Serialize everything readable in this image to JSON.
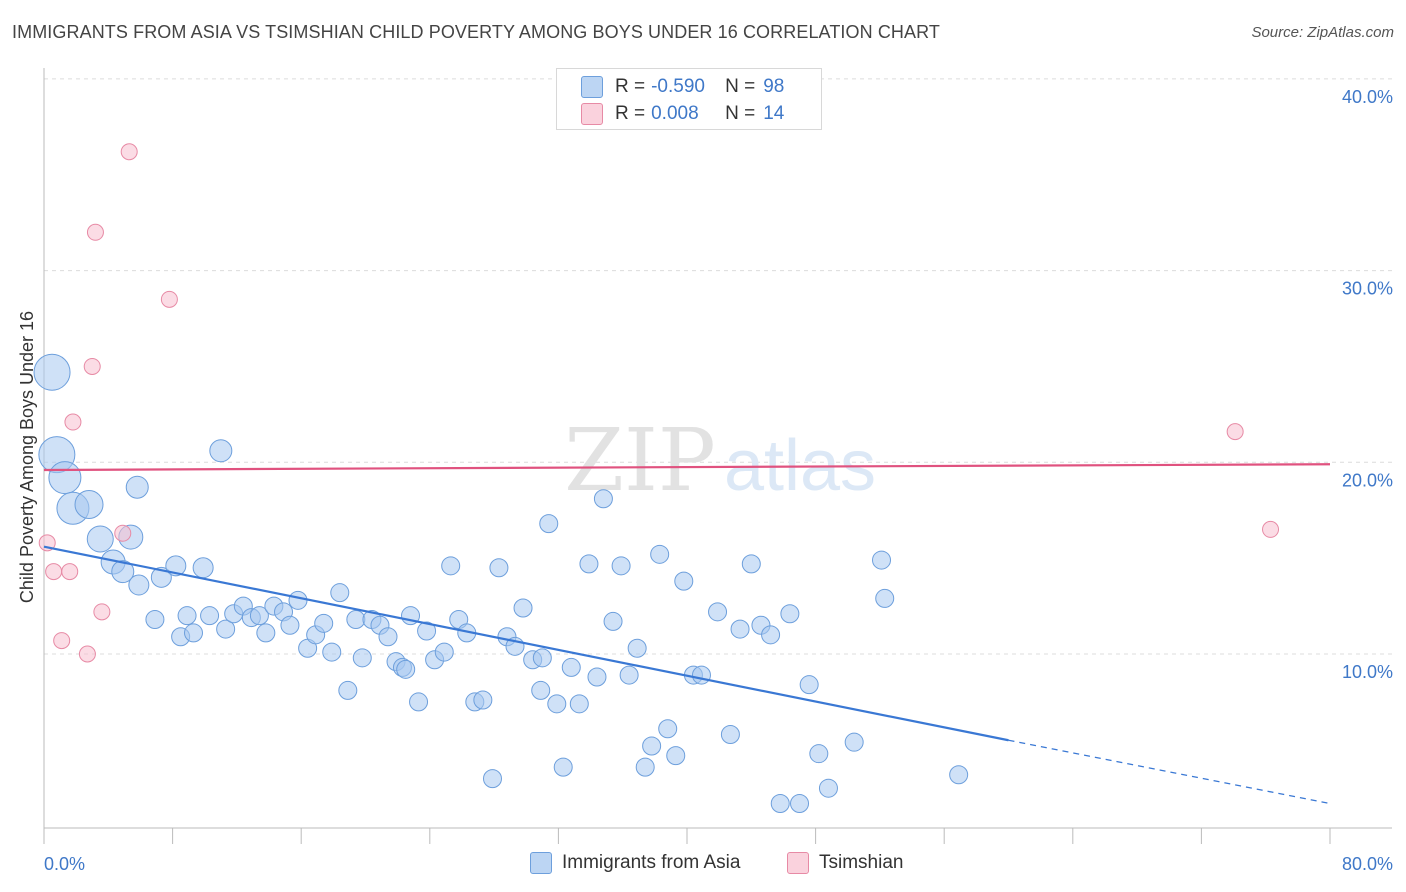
{
  "header": {
    "title": "IMMIGRANTS FROM ASIA VS TSIMSHIAN CHILD POVERTY AMONG BOYS UNDER 16 CORRELATION CHART",
    "source": "Source: ZipAtlas.com"
  },
  "watermark": {
    "zip": "ZIP",
    "atlas": "atlas"
  },
  "legend": {
    "rows": [
      {
        "r_label": "R =",
        "r_value": "-0.590",
        "n_label": "N =",
        "n_value": "98"
      },
      {
        "r_label": "R =",
        "r_value": "0.008",
        "n_label": "N =",
        "n_value": "14"
      }
    ]
  },
  "bottom_legend": {
    "series1": "Immigrants from Asia",
    "series2": "Tsimshian"
  },
  "colors": {
    "blue_fill": "#a8c8f0",
    "blue_stroke": "#6d9fdc",
    "blue_line": "#3a78d4",
    "pink_fill": "#f7c0cf",
    "pink_stroke": "#e78aa5",
    "pink_line": "#e0527f",
    "tick_text": "#3f78c8"
  },
  "chart_data": {
    "type": "scatter",
    "title": "IMMIGRANTS FROM ASIA VS TSIMSHIAN CHILD POVERTY AMONG BOYS UNDER 16 CORRELATION CHART",
    "xlabel": "",
    "ylabel": "Child Poverty Among Boys Under 16",
    "xlim": [
      0,
      80
    ],
    "ylim": [
      0,
      41
    ],
    "x_tick_labels": [
      "0.0%",
      "80.0%"
    ],
    "y_ticks": [
      10,
      20,
      30,
      40
    ],
    "y_tick_labels": [
      "10.0%",
      "20.0%",
      "30.0%",
      "40.0%"
    ],
    "grid": true,
    "legend_position": "top-center",
    "series": [
      {
        "name": "Immigrants from Asia",
        "r": -0.59,
        "n": 98,
        "trend": {
          "x0": 0,
          "y0": 15.6,
          "x1": 60,
          "y1": 5.5,
          "dash_to_x": 80,
          "dash_to_y": 2.2
        },
        "points": [
          {
            "x": 0.5,
            "y": 24.7,
            "s": 18
          },
          {
            "x": 0.8,
            "y": 20.4,
            "s": 18
          },
          {
            "x": 1.3,
            "y": 19.2,
            "s": 16
          },
          {
            "x": 1.8,
            "y": 17.6,
            "s": 16
          },
          {
            "x": 2.8,
            "y": 17.8,
            "s": 14
          },
          {
            "x": 3.5,
            "y": 16.0,
            "s": 13
          },
          {
            "x": 5.4,
            "y": 16.1,
            "s": 12
          },
          {
            "x": 4.3,
            "y": 14.8,
            "s": 12
          },
          {
            "x": 4.9,
            "y": 14.3,
            "s": 11
          },
          {
            "x": 5.9,
            "y": 13.6,
            "s": 10
          },
          {
            "x": 7.3,
            "y": 14.0,
            "s": 10
          },
          {
            "x": 8.2,
            "y": 14.6,
            "s": 10
          },
          {
            "x": 9.9,
            "y": 14.5,
            "s": 10
          },
          {
            "x": 5.8,
            "y": 18.7,
            "s": 11
          },
          {
            "x": 11.0,
            "y": 20.6,
            "s": 11
          },
          {
            "x": 6.9,
            "y": 11.8,
            "s": 9
          },
          {
            "x": 8.5,
            "y": 10.9,
            "s": 9
          },
          {
            "x": 8.9,
            "y": 12.0,
            "s": 9
          },
          {
            "x": 9.3,
            "y": 11.1,
            "s": 9
          },
          {
            "x": 10.3,
            "y": 12.0,
            "s": 9
          },
          {
            "x": 11.3,
            "y": 11.3,
            "s": 9
          },
          {
            "x": 11.8,
            "y": 12.1,
            "s": 9
          },
          {
            "x": 12.4,
            "y": 12.5,
            "s": 9
          },
          {
            "x": 12.9,
            "y": 11.9,
            "s": 9
          },
          {
            "x": 13.4,
            "y": 12.0,
            "s": 9
          },
          {
            "x": 13.8,
            "y": 11.1,
            "s": 9
          },
          {
            "x": 14.3,
            "y": 12.5,
            "s": 9
          },
          {
            "x": 14.9,
            "y": 12.2,
            "s": 9
          },
          {
            "x": 15.3,
            "y": 11.5,
            "s": 9
          },
          {
            "x": 15.8,
            "y": 12.8,
            "s": 9
          },
          {
            "x": 16.4,
            "y": 10.3,
            "s": 9
          },
          {
            "x": 16.9,
            "y": 11.0,
            "s": 9
          },
          {
            "x": 17.4,
            "y": 11.6,
            "s": 9
          },
          {
            "x": 17.9,
            "y": 10.1,
            "s": 9
          },
          {
            "x": 18.4,
            "y": 13.2,
            "s": 9
          },
          {
            "x": 18.9,
            "y": 8.1,
            "s": 9
          },
          {
            "x": 19.4,
            "y": 11.8,
            "s": 9
          },
          {
            "x": 19.8,
            "y": 9.8,
            "s": 9
          },
          {
            "x": 20.4,
            "y": 11.8,
            "s": 9
          },
          {
            "x": 20.9,
            "y": 11.5,
            "s": 9
          },
          {
            "x": 21.4,
            "y": 10.9,
            "s": 9
          },
          {
            "x": 21.9,
            "y": 9.6,
            "s": 9
          },
          {
            "x": 22.3,
            "y": 9.3,
            "s": 9
          },
          {
            "x": 22.8,
            "y": 12.0,
            "s": 9
          },
          {
            "x": 23.3,
            "y": 7.5,
            "s": 9
          },
          {
            "x": 23.8,
            "y": 11.2,
            "s": 9
          },
          {
            "x": 24.3,
            "y": 9.7,
            "s": 9
          },
          {
            "x": 24.9,
            "y": 10.1,
            "s": 9
          },
          {
            "x": 25.3,
            "y": 14.6,
            "s": 9
          },
          {
            "x": 25.8,
            "y": 11.8,
            "s": 9
          },
          {
            "x": 26.3,
            "y": 11.1,
            "s": 9
          },
          {
            "x": 26.8,
            "y": 7.5,
            "s": 9
          },
          {
            "x": 27.3,
            "y": 7.6,
            "s": 9
          },
          {
            "x": 27.9,
            "y": 3.5,
            "s": 9
          },
          {
            "x": 28.3,
            "y": 14.5,
            "s": 9
          },
          {
            "x": 28.8,
            "y": 10.9,
            "s": 9
          },
          {
            "x": 29.3,
            "y": 10.4,
            "s": 9
          },
          {
            "x": 29.8,
            "y": 12.4,
            "s": 9
          },
          {
            "x": 30.4,
            "y": 9.7,
            "s": 9
          },
          {
            "x": 30.9,
            "y": 8.1,
            "s": 9
          },
          {
            "x": 31.4,
            "y": 16.8,
            "s": 9
          },
          {
            "x": 31.9,
            "y": 7.4,
            "s": 9
          },
          {
            "x": 32.3,
            "y": 4.1,
            "s": 9
          },
          {
            "x": 32.8,
            "y": 9.3,
            "s": 9
          },
          {
            "x": 33.3,
            "y": 7.4,
            "s": 9
          },
          {
            "x": 33.9,
            "y": 14.7,
            "s": 9
          },
          {
            "x": 34.4,
            "y": 8.8,
            "s": 9
          },
          {
            "x": 34.8,
            "y": 18.1,
            "s": 9
          },
          {
            "x": 35.4,
            "y": 11.7,
            "s": 9
          },
          {
            "x": 35.9,
            "y": 14.6,
            "s": 9
          },
          {
            "x": 36.4,
            "y": 8.9,
            "s": 9
          },
          {
            "x": 36.9,
            "y": 10.3,
            "s": 9
          },
          {
            "x": 37.4,
            "y": 4.1,
            "s": 9
          },
          {
            "x": 37.8,
            "y": 5.2,
            "s": 9
          },
          {
            "x": 38.3,
            "y": 15.2,
            "s": 9
          },
          {
            "x": 38.8,
            "y": 6.1,
            "s": 9
          },
          {
            "x": 39.3,
            "y": 4.7,
            "s": 9
          },
          {
            "x": 39.8,
            "y": 13.8,
            "s": 9
          },
          {
            "x": 40.4,
            "y": 8.9,
            "s": 9
          },
          {
            "x": 40.9,
            "y": 8.9,
            "s": 9
          },
          {
            "x": 41.9,
            "y": 12.2,
            "s": 9
          },
          {
            "x": 42.7,
            "y": 5.8,
            "s": 9
          },
          {
            "x": 43.3,
            "y": 11.3,
            "s": 9
          },
          {
            "x": 44.0,
            "y": 14.7,
            "s": 9
          },
          {
            "x": 44.6,
            "y": 11.5,
            "s": 9
          },
          {
            "x": 45.2,
            "y": 11.0,
            "s": 9
          },
          {
            "x": 45.8,
            "y": 2.2,
            "s": 9
          },
          {
            "x": 46.4,
            "y": 12.1,
            "s": 9
          },
          {
            "x": 47.0,
            "y": 2.2,
            "s": 9
          },
          {
            "x": 47.6,
            "y": 8.4,
            "s": 9
          },
          {
            "x": 48.2,
            "y": 4.8,
            "s": 9
          },
          {
            "x": 48.8,
            "y": 3.0,
            "s": 9
          },
          {
            "x": 50.4,
            "y": 5.4,
            "s": 9
          },
          {
            "x": 52.1,
            "y": 14.9,
            "s": 9
          },
          {
            "x": 52.3,
            "y": 12.9,
            "s": 9
          },
          {
            "x": 56.9,
            "y": 3.7,
            "s": 9
          },
          {
            "x": 22.5,
            "y": 9.2,
            "s": 9
          },
          {
            "x": 31.0,
            "y": 9.8,
            "s": 9
          }
        ]
      },
      {
        "name": "Tsimshian",
        "r": 0.008,
        "n": 14,
        "trend": {
          "x0": 0,
          "y0": 19.6,
          "x1": 80,
          "y1": 19.9
        },
        "points": [
          {
            "x": 0.2,
            "y": 15.8,
            "s": 8
          },
          {
            "x": 0.6,
            "y": 14.3,
            "s": 8
          },
          {
            "x": 1.1,
            "y": 10.7,
            "s": 8
          },
          {
            "x": 1.6,
            "y": 14.3,
            "s": 8
          },
          {
            "x": 1.8,
            "y": 22.1,
            "s": 8
          },
          {
            "x": 2.7,
            "y": 10.0,
            "s": 8
          },
          {
            "x": 3.0,
            "y": 25.0,
            "s": 8
          },
          {
            "x": 3.2,
            "y": 32.0,
            "s": 8
          },
          {
            "x": 3.6,
            "y": 12.2,
            "s": 8
          },
          {
            "x": 4.9,
            "y": 16.3,
            "s": 8
          },
          {
            "x": 5.3,
            "y": 36.2,
            "s": 8
          },
          {
            "x": 7.8,
            "y": 28.5,
            "s": 8
          },
          {
            "x": 74.1,
            "y": 21.6,
            "s": 8
          },
          {
            "x": 76.3,
            "y": 16.5,
            "s": 8
          }
        ]
      }
    ]
  }
}
